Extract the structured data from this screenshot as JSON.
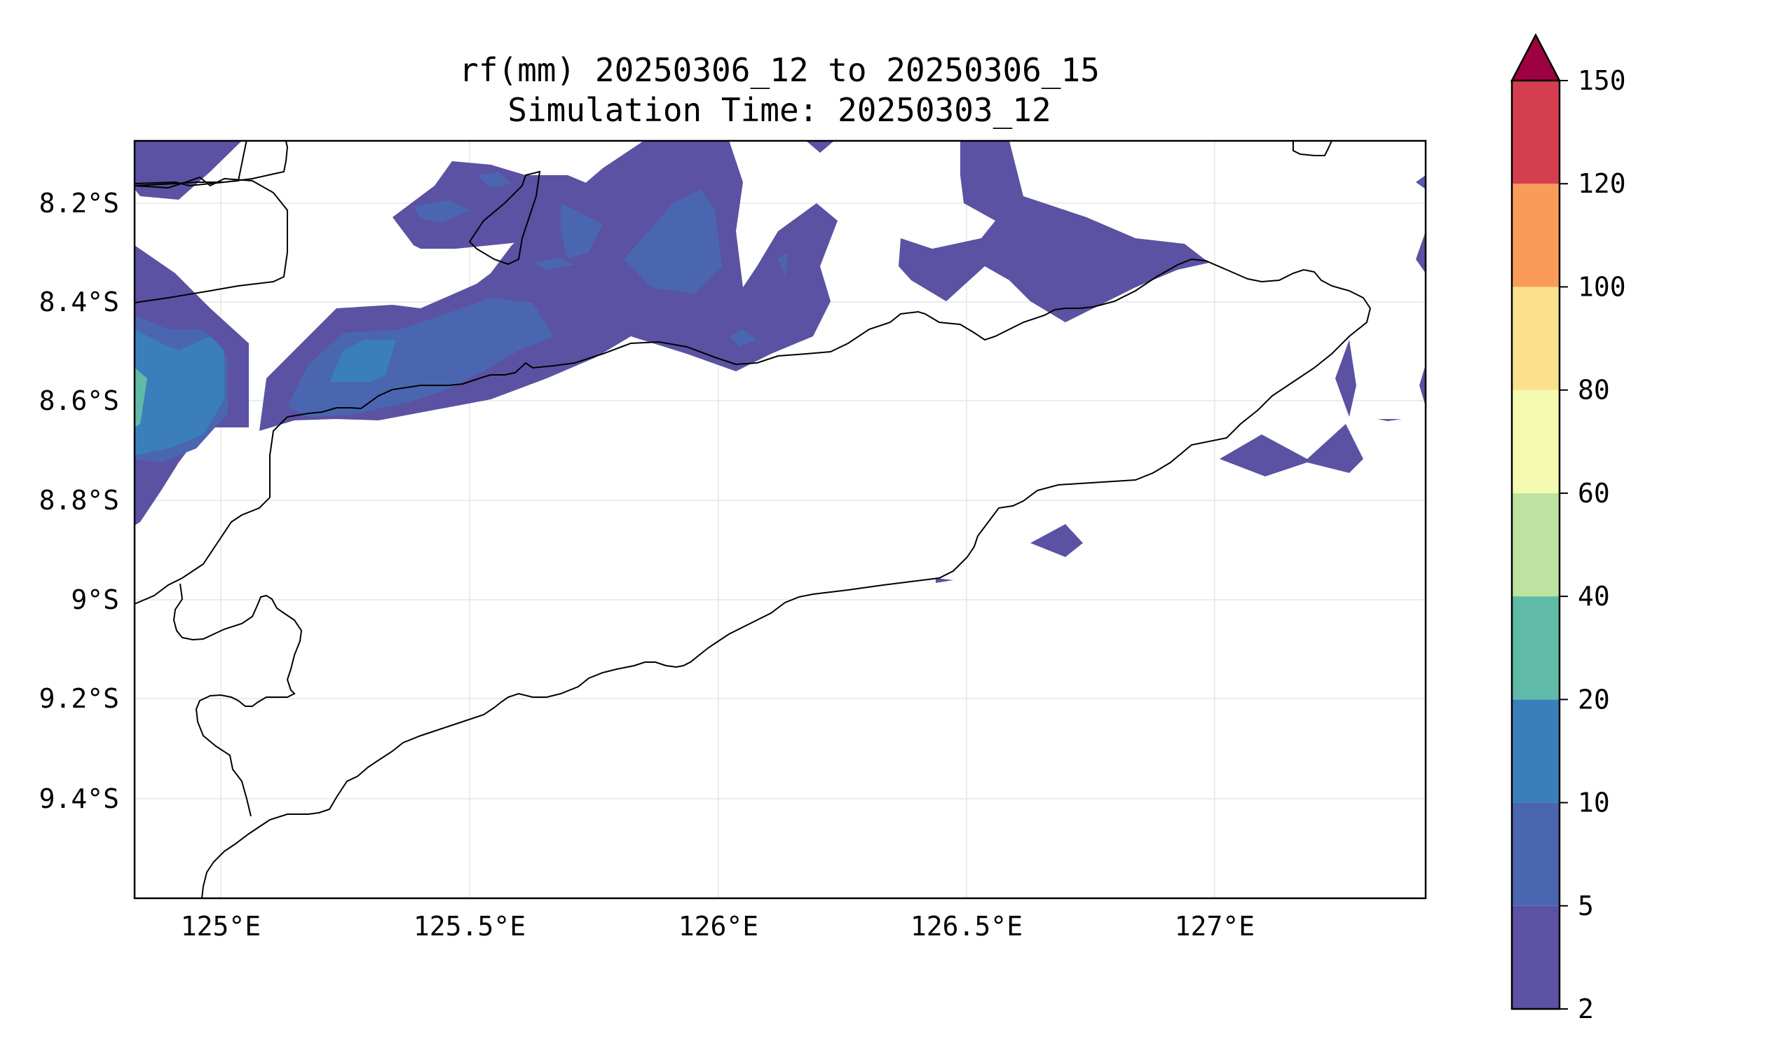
{
  "title": {
    "line1": "rf(mm) 20250306_12 to 20250306_15",
    "line2": "Simulation Time: 20250303_12"
  },
  "axes": {
    "x_ticks": [
      "125°E",
      "125.5°E",
      "126°E",
      "126.5°E",
      "127°E"
    ],
    "y_ticks": [
      "8.2°S",
      "8.4°S",
      "8.6°S",
      "8.8°S",
      "9°S",
      "9.2°S",
      "9.4°S"
    ]
  },
  "colorbar": {
    "levels": [
      "2",
      "5",
      "10",
      "20",
      "40",
      "60",
      "80",
      "100",
      "120",
      "150"
    ],
    "colors": [
      "#5b52a3",
      "#4a66b0",
      "#3a7fbb",
      "#5fbaa8",
      "#bde3a0",
      "#f4fbb0",
      "#fbe08e",
      "#f99c5a",
      "#d53e4f",
      "#9e0142"
    ],
    "extend": "max"
  },
  "chart_data": {
    "type": "heatmap",
    "title": "rf(mm) 20250306_12 to 20250306_15\nSimulation Time: 20250303_12",
    "xlabel": "",
    "ylabel": "",
    "x_ticks": [
      "125°E",
      "125.5°E",
      "126°E",
      "126.5°E",
      "127°E"
    ],
    "y_ticks": [
      "8.2°S",
      "8.4°S",
      "8.6°S",
      "8.8°S",
      "9°S",
      "9.2°S",
      "9.4°S"
    ],
    "variable": "rainfall (mm)",
    "levels": [
      2,
      5,
      10,
      20,
      40,
      60,
      80,
      100,
      120,
      150
    ],
    "grid": true
  }
}
